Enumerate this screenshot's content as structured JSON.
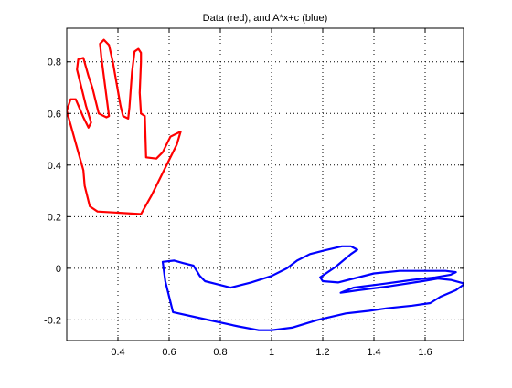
{
  "chart_data": {
    "type": "line",
    "title": "Data (red), and A*x+c (blue)",
    "xlabel": "",
    "ylabel": "",
    "xlim": [
      0.2,
      1.75
    ],
    "ylim": [
      -0.28,
      0.93
    ],
    "xticks": [
      0.4,
      0.6,
      0.8,
      1,
      1.2,
      1.4,
      1.6
    ],
    "yticks": [
      -0.2,
      0,
      0.2,
      0.4,
      0.6,
      0.8
    ],
    "xtick_labels": [
      "0.4",
      "0.6",
      "0.8",
      "1",
      "1.2",
      "1.4",
      "1.6"
    ],
    "ytick_labels": [
      "-0.2",
      "0",
      "0.2",
      "0.4",
      "0.6",
      "0.8"
    ],
    "grid": true,
    "grid_style": "dotted",
    "series": [
      {
        "name": "",
        "color": "#ff0000",
        "points": [
          [
            0.49,
            0.21
          ],
          [
            0.32,
            0.22
          ],
          [
            0.29,
            0.24
          ],
          [
            0.27,
            0.32
          ],
          [
            0.265,
            0.38
          ],
          [
            0.245,
            0.45
          ],
          [
            0.2,
            0.61
          ],
          [
            0.215,
            0.655
          ],
          [
            0.235,
            0.655
          ],
          [
            0.265,
            0.585
          ],
          [
            0.285,
            0.545
          ],
          [
            0.295,
            0.565
          ],
          [
            0.275,
            0.63
          ],
          [
            0.24,
            0.77
          ],
          [
            0.245,
            0.81
          ],
          [
            0.265,
            0.815
          ],
          [
            0.285,
            0.745
          ],
          [
            0.3,
            0.7
          ],
          [
            0.325,
            0.6
          ],
          [
            0.355,
            0.585
          ],
          [
            0.365,
            0.59
          ],
          [
            0.335,
            0.82
          ],
          [
            0.33,
            0.87
          ],
          [
            0.345,
            0.885
          ],
          [
            0.365,
            0.865
          ],
          [
            0.38,
            0.8
          ],
          [
            0.41,
            0.63
          ],
          [
            0.42,
            0.59
          ],
          [
            0.44,
            0.58
          ],
          [
            0.445,
            0.625
          ],
          [
            0.455,
            0.76
          ],
          [
            0.465,
            0.84
          ],
          [
            0.48,
            0.85
          ],
          [
            0.49,
            0.835
          ],
          [
            0.49,
            0.8
          ],
          [
            0.485,
            0.68
          ],
          [
            0.49,
            0.6
          ],
          [
            0.505,
            0.59
          ],
          [
            0.51,
            0.43
          ],
          [
            0.55,
            0.425
          ],
          [
            0.575,
            0.45
          ],
          [
            0.605,
            0.51
          ],
          [
            0.645,
            0.53
          ],
          [
            0.63,
            0.48
          ],
          [
            0.53,
            0.28
          ],
          [
            0.49,
            0.21
          ]
        ]
      },
      {
        "name": "",
        "color": "#0000ff",
        "points": [
          [
            0.575,
            0.025
          ],
          [
            0.585,
            -0.05
          ],
          [
            0.6,
            -0.11
          ],
          [
            0.615,
            -0.17
          ],
          [
            0.73,
            -0.195
          ],
          [
            0.87,
            -0.225
          ],
          [
            0.95,
            -0.24
          ],
          [
            1.0,
            -0.24
          ],
          [
            1.08,
            -0.23
          ],
          [
            1.18,
            -0.2
          ],
          [
            1.29,
            -0.175
          ],
          [
            1.38,
            -0.165
          ],
          [
            1.45,
            -0.155
          ],
          [
            1.55,
            -0.145
          ],
          [
            1.62,
            -0.135
          ],
          [
            1.66,
            -0.11
          ],
          [
            1.72,
            -0.085
          ],
          [
            1.755,
            -0.06
          ],
          [
            1.7,
            -0.045
          ],
          [
            1.65,
            -0.04
          ],
          [
            1.59,
            -0.05
          ],
          [
            1.46,
            -0.07
          ],
          [
            1.34,
            -0.085
          ],
          [
            1.27,
            -0.095
          ],
          [
            1.32,
            -0.075
          ],
          [
            1.44,
            -0.06
          ],
          [
            1.55,
            -0.045
          ],
          [
            1.64,
            -0.035
          ],
          [
            1.7,
            -0.025
          ],
          [
            1.72,
            -0.015
          ],
          [
            1.68,
            -0.01
          ],
          [
            1.6,
            -0.01
          ],
          [
            1.5,
            -0.01
          ],
          [
            1.4,
            -0.02
          ],
          [
            1.26,
            -0.055
          ],
          [
            1.2,
            -0.05
          ],
          [
            1.19,
            -0.035
          ],
          [
            1.25,
            0.005
          ],
          [
            1.31,
            0.055
          ],
          [
            1.335,
            0.072
          ],
          [
            1.31,
            0.085
          ],
          [
            1.275,
            0.085
          ],
          [
            1.21,
            0.07
          ],
          [
            1.15,
            0.055
          ],
          [
            1.1,
            0.03
          ],
          [
            1.06,
            0.0
          ],
          [
            1.0,
            -0.03
          ],
          [
            0.92,
            -0.055
          ],
          [
            0.84,
            -0.075
          ],
          [
            0.78,
            -0.06
          ],
          [
            0.74,
            -0.05
          ],
          [
            0.72,
            -0.03
          ],
          [
            0.695,
            0.01
          ],
          [
            0.655,
            0.02
          ],
          [
            0.62,
            0.03
          ],
          [
            0.575,
            0.025
          ]
        ]
      }
    ]
  }
}
